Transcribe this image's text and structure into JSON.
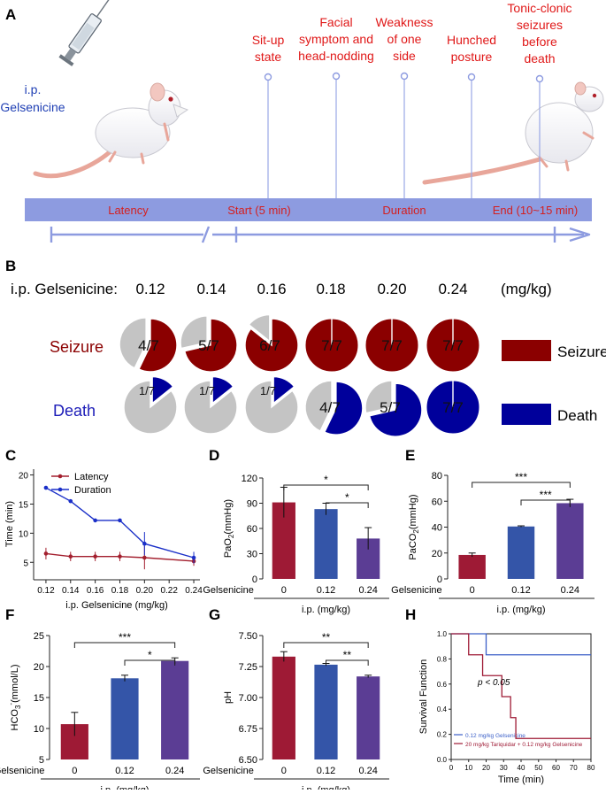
{
  "panel_a": {
    "label": "A",
    "injection_line1": "i.p.",
    "injection_line2": "Gelsenicine",
    "stages": [
      {
        "lines": [
          "Sit-up",
          "state"
        ]
      },
      {
        "lines": [
          "Facial",
          "symptom and",
          "head-nodding"
        ]
      },
      {
        "lines": [
          "Weakness",
          "of one",
          "side"
        ]
      },
      {
        "lines": [
          "Hunched",
          "posture"
        ]
      },
      {
        "lines": [
          "Tonic-clonic",
          "seizures",
          "before",
          "death"
        ]
      }
    ],
    "timeline": [
      "Latency",
      "Start (5 min)",
      "Duration",
      "End (10~15 min)"
    ]
  },
  "panel_b": {
    "label": "B",
    "row_label": "i.p. Gelsenicine:",
    "doses": [
      "0.12",
      "0.14",
      "0.16",
      "0.18",
      "0.20",
      "0.24"
    ],
    "unit": "(mg/kg)",
    "seizure_label": "Seizure",
    "death_label": "Death",
    "seizure_counts": [
      4,
      5,
      6,
      7,
      7,
      7
    ],
    "seizure_texts": [
      "4/7",
      "5/7",
      "6/7",
      "7/7",
      "7/7",
      "7/7"
    ],
    "death_counts": [
      1,
      1,
      1,
      4,
      5,
      7
    ],
    "death_texts": [
      "1/7",
      "1/7",
      "1/7",
      "4/7",
      "5/7",
      "7/7"
    ],
    "total": 7,
    "legend_seizure": "Seizure",
    "legend_death": "Death",
    "colors": {
      "seizure": "#8b0000",
      "death": "#00009b",
      "rest": "#c4c4c4"
    }
  },
  "chart_data": [
    {
      "panel": "C",
      "type": "line",
      "x": [
        0.12,
        0.14,
        0.16,
        0.18,
        0.2,
        0.24
      ],
      "series": [
        {
          "name": "Latency",
          "values": [
            6.5,
            6.0,
            6.0,
            6.0,
            5.8,
            5.2
          ],
          "errors": [
            1.0,
            0.8,
            0.8,
            0.8,
            2.0,
            0.8
          ],
          "color": "#a31f2e"
        },
        {
          "name": "Duration",
          "values": [
            17.8,
            15.5,
            12.2,
            12.2,
            8.2,
            5.8
          ],
          "errors": [
            0,
            0,
            0,
            0,
            2.0,
            1.0
          ],
          "color": "#1a2fc8"
        }
      ],
      "title": "",
      "xlabel": "i.p. Gelsenicine (mg/kg)",
      "ylabel": "Time (min)",
      "xticks": [
        "0.12",
        "0.14",
        "0.16",
        "0.18",
        "0.20",
        "0.22",
        "0.24"
      ],
      "yticks": [
        "5",
        "10",
        "15",
        "20"
      ],
      "xlim": [
        0.11,
        0.245
      ],
      "ylim": [
        2,
        21
      ]
    },
    {
      "panel": "D",
      "type": "bar",
      "categories": [
        "0",
        "0.12",
        "0.24"
      ],
      "values": [
        91,
        83,
        48
      ],
      "errors": [
        18,
        7,
        13
      ],
      "colors": [
        "#9e1a35",
        "#3455a8",
        "#5b3d94"
      ],
      "row_label": "Gelsenicine",
      "xlabel": "i.p. (mg/kg)",
      "ylabel": "PaO2(mmHg)",
      "ylabel_main": "PaO",
      "ylabel_sub": "2",
      "ylabel_rest": "(mmHg)",
      "yticks": [
        "0",
        "30",
        "60",
        "90",
        "120"
      ],
      "ylim": [
        0,
        120
      ],
      "significance": [
        {
          "from": 0,
          "to": 2,
          "label": "*"
        },
        {
          "from": 1,
          "to": 2,
          "label": "*"
        }
      ]
    },
    {
      "panel": "E",
      "type": "bar",
      "categories": [
        "0",
        "0.12",
        "0.24"
      ],
      "values": [
        18.5,
        40.5,
        58.5
      ],
      "errors": [
        1.5,
        0.5,
        3
      ],
      "colors": [
        "#9e1a35",
        "#3455a8",
        "#5b3d94"
      ],
      "row_label": "Gelsenicine",
      "xlabel": "i.p. (mg/kg)",
      "ylabel": "PaCO2(mmHg)",
      "ylabel_main": "PaCO",
      "ylabel_sub": "2",
      "ylabel_rest": "(mmHg)",
      "yticks": [
        "0",
        "20",
        "40",
        "60",
        "80"
      ],
      "ylim": [
        0,
        80
      ],
      "significance": [
        {
          "from": 0,
          "to": 2,
          "label": "***"
        },
        {
          "from": 1,
          "to": 2,
          "label": "***"
        }
      ]
    },
    {
      "panel": "F",
      "type": "bar",
      "categories": [
        "0",
        "0.12",
        "0.24"
      ],
      "values": [
        10.7,
        18.1,
        20.9
      ],
      "errors": [
        1.9,
        0.5,
        0.5
      ],
      "colors": [
        "#9e1a35",
        "#3455a8",
        "#5b3d94"
      ],
      "row_label": "Gelsenicine",
      "xlabel": "i.p. (mg/kg)",
      "ylabel": "HCO3-(mmol/L)",
      "ylabel_main": "HCO",
      "ylabel_sub": "3",
      "ylabel_sup": "-",
      "ylabel_rest": "(mmol/L)",
      "yticks": [
        "5",
        "10",
        "15",
        "20",
        "25"
      ],
      "ylim": [
        5,
        25
      ],
      "significance": [
        {
          "from": 0,
          "to": 2,
          "label": "***"
        },
        {
          "from": 1,
          "to": 2,
          "label": "*"
        }
      ]
    },
    {
      "panel": "G",
      "type": "bar",
      "categories": [
        "0",
        "0.12",
        "0.24"
      ],
      "values": [
        7.33,
        7.265,
        7.17
      ],
      "errors": [
        0.04,
        0.01,
        0.01
      ],
      "colors": [
        "#9e1a35",
        "#3455a8",
        "#5b3d94"
      ],
      "row_label": "Gelsenicine",
      "xlabel": "i.p. (mg/kg)",
      "ylabel": "pH",
      "yticks": [
        "6.50",
        "6.75",
        "7.00",
        "7.25",
        "7.50"
      ],
      "ylim": [
        6.5,
        7.5
      ],
      "significance": [
        {
          "from": 0,
          "to": 2,
          "label": "**"
        },
        {
          "from": 1,
          "to": 2,
          "label": "**"
        }
      ]
    },
    {
      "panel": "H",
      "type": "line",
      "series": [
        {
          "name": "0.12 mg/kg Gelsenicine",
          "color": "#3b5fc8",
          "x": [
            0,
            20,
            20,
            80
          ],
          "y": [
            1.0,
            1.0,
            0.833,
            0.833
          ]
        },
        {
          "name": "20 mg/kg Tariquidar + 0.12 mg/kg Gelsenicine",
          "color": "#9e1a35",
          "x": [
            0,
            10,
            10,
            18,
            18,
            29,
            29,
            34,
            34,
            37,
            37,
            80
          ],
          "y": [
            1.0,
            1.0,
            0.833,
            0.833,
            0.667,
            0.667,
            0.5,
            0.5,
            0.333,
            0.333,
            0.167,
            0.167
          ]
        }
      ],
      "annotation": "p < 0.05",
      "xlabel": "Time (min)",
      "ylabel": "Survival Function",
      "xticks": [
        "0",
        "10",
        "20",
        "30",
        "40",
        "50",
        "60",
        "70",
        "80"
      ],
      "yticks": [
        "0.0",
        "0.2",
        "0.4",
        "0.6",
        "0.8",
        "1.0"
      ],
      "xlim": [
        0,
        80
      ],
      "ylim": [
        0,
        1
      ]
    }
  ],
  "panel_labels": {
    "c": "C",
    "d": "D",
    "e": "E",
    "f": "F",
    "g": "G",
    "h": "H"
  }
}
